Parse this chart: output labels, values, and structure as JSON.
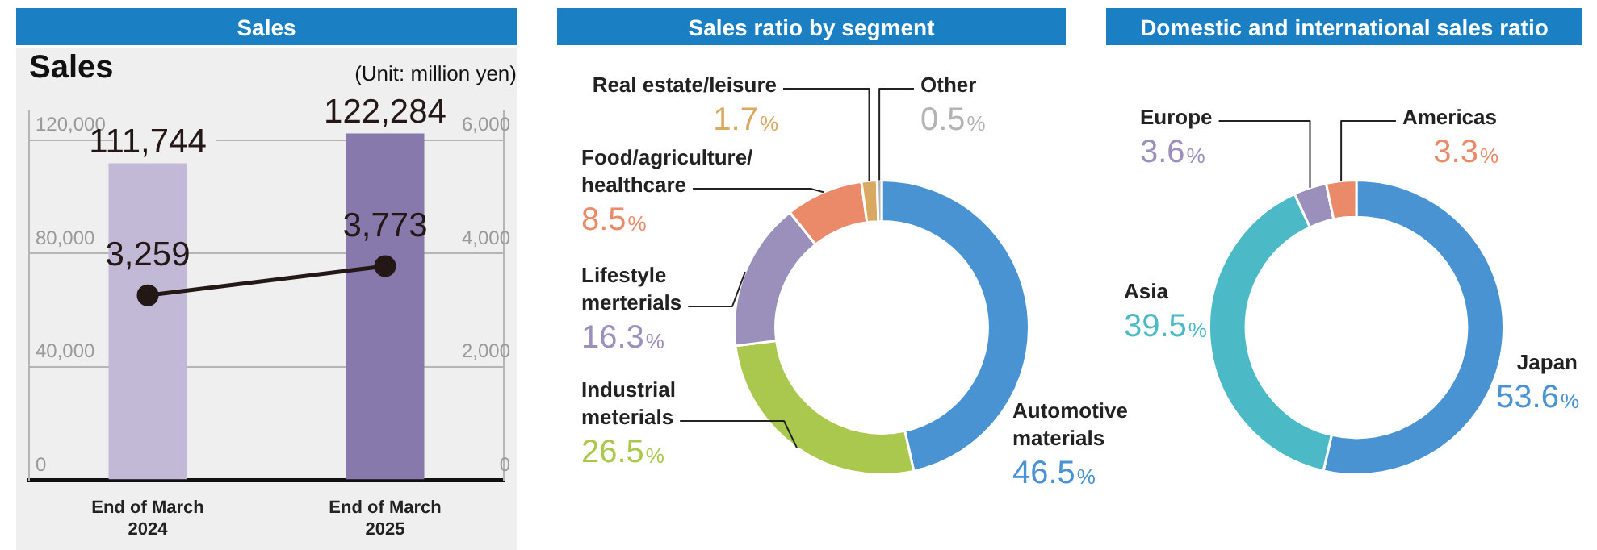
{
  "chart_data": [
    {
      "type": "bar",
      "title": "Sales",
      "subtitle": "Sales",
      "annotations": [
        "(Unit: million yen)"
      ],
      "categories": [
        "End of March 2024",
        "End of March 2025"
      ],
      "series": [
        {
          "type": "bar",
          "colors": [
            "#c1b9d6",
            "#8779ab"
          ],
          "values": [
            111744,
            122284
          ],
          "value_labels": [
            "111,744",
            "122,284"
          ]
        },
        {
          "type": "line",
          "axis": "y2",
          "color": "#231815",
          "values": [
            3259,
            3773
          ],
          "value_labels": [
            "3,259",
            "3,773"
          ]
        }
      ],
      "ylim": [
        0,
        130000
      ],
      "yticks": [
        0,
        {
          "value": 40000,
          "label": "40,000"
        },
        {
          "value": 80000,
          "label": "80,000"
        },
        {
          "value": 120000,
          "label": "120,000"
        }
      ],
      "y2lim": [
        0,
        6500
      ],
      "y2ticks": [
        0,
        {
          "value": 2000,
          "label": "2,000"
        },
        {
          "value": 4000,
          "label": "4,000"
        },
        {
          "value": 6000,
          "label": "6,000"
        }
      ],
      "grid": "y",
      "marker": "circle"
    },
    {
      "type": "donut",
      "title": "Sales ratio by segment",
      "categories": [
        "Automotive materials",
        "Industrial meterials",
        "Lifestyle merterials",
        "Food/agriculture/healthcare",
        "Real estate/leisure",
        "Other"
      ],
      "values": [
        46.5,
        26.5,
        16.3,
        8.5,
        1.7,
        0.5
      ],
      "colors": [
        "#4a93d3",
        "#abc84e",
        "#9b8fbb",
        "#ea8a68",
        "#d9a961",
        "#b3b3b3"
      ],
      "value_labels": [
        "46.5%",
        "26.5%",
        "16.3%",
        "8.5%",
        "1.7%",
        "0.5%"
      ]
    },
    {
      "type": "donut",
      "title": "Domestic and international sales ratio",
      "categories": [
        "Japan",
        "Asia",
        "Europe",
        "Americas"
      ],
      "values": [
        53.6,
        39.5,
        3.6,
        3.3
      ],
      "colors": [
        "#4a93d3",
        "#4bbac6",
        "#9b8fbb",
        "#ea8a68"
      ],
      "value_labels": [
        "53.6%",
        "39.5%",
        "3.6%",
        "3.3%"
      ]
    }
  ]
}
